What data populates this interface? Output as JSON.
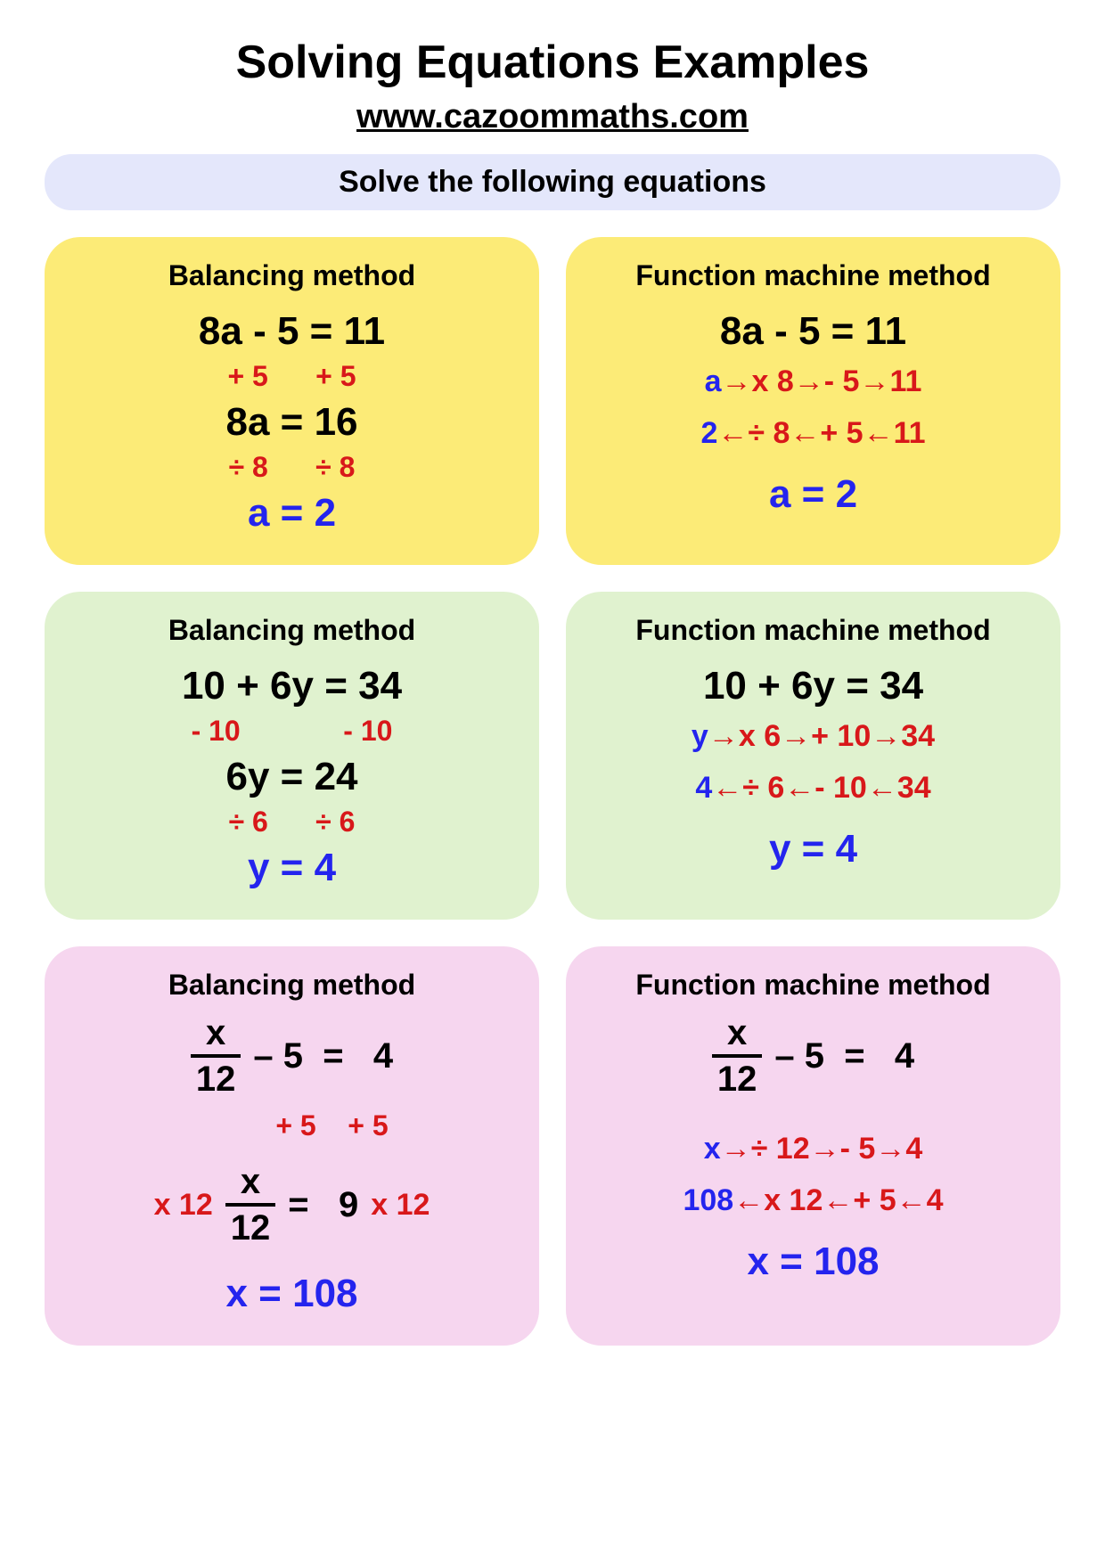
{
  "title": "Solving Equations Examples",
  "url": "www.cazoommaths.com",
  "banner": {
    "text": "Solve the following equations",
    "bg": "#e4e7fb"
  },
  "colors": {
    "red": "#d8181a",
    "blue": "#2424ee",
    "black": "#000000",
    "row_bg": [
      "#fceb77",
      "#e0f2cf",
      "#f6d6ef"
    ]
  },
  "rows": [
    {
      "bg": "#fceb77",
      "left": {
        "title": "Balancing method",
        "lines": [
          {
            "text": "8a - 5 = 11",
            "cls": "eq-black"
          },
          {
            "text": "+ 5      + 5",
            "cls": "eq-red",
            "color": "#d8181a"
          },
          {
            "text": "8a = 16",
            "cls": "eq-black"
          },
          {
            "text": "÷ 8      ÷ 8",
            "cls": "eq-red",
            "color": "#d8181a"
          },
          {
            "text": "a = 2",
            "cls": "eq-blue",
            "color": "#2424ee"
          }
        ]
      },
      "right": {
        "title": "Function machine method",
        "equation": "8a - 5 = 11",
        "fm_forward": [
          {
            "t": "a ",
            "c": "#2424ee"
          },
          {
            "t": "→",
            "c": "#d8181a"
          },
          {
            "t": "x 8 ",
            "c": "#d8181a"
          },
          {
            "t": "→",
            "c": "#d8181a"
          },
          {
            "t": " - 5  ",
            "c": "#d8181a"
          },
          {
            "t": "→",
            "c": "#d8181a"
          },
          {
            "t": " 11",
            "c": "#d8181a"
          }
        ],
        "fm_back": [
          {
            "t": "2 ",
            "c": "#2424ee"
          },
          {
            "t": "←",
            "c": "#d8181a"
          },
          {
            "t": " ÷ 8 ",
            "c": "#d8181a"
          },
          {
            "t": "←",
            "c": "#d8181a"
          },
          {
            "t": " + 5 ",
            "c": "#d8181a"
          },
          {
            "t": "←",
            "c": "#d8181a"
          },
          {
            "t": " 11",
            "c": "#d8181a"
          }
        ],
        "answer": "a = 2"
      }
    },
    {
      "bg": "#e0f2cf",
      "left": {
        "title": "Balancing method",
        "lines": [
          {
            "text": "10 + 6y = 34",
            "cls": "eq-black"
          },
          {
            "text": "- 10             - 10",
            "cls": "eq-red",
            "color": "#d8181a"
          },
          {
            "text": "6y = 24",
            "cls": "eq-black"
          },
          {
            "text": "÷ 6      ÷ 6",
            "cls": "eq-red",
            "color": "#d8181a"
          },
          {
            "text": "y = 4",
            "cls": "eq-blue",
            "color": "#2424ee"
          }
        ]
      },
      "right": {
        "title": "Function machine method",
        "equation": "10 + 6y = 34",
        "fm_forward": [
          {
            "t": "y ",
            "c": "#2424ee"
          },
          {
            "t": "→",
            "c": "#d8181a"
          },
          {
            "t": "x 6 ",
            "c": "#d8181a"
          },
          {
            "t": "→",
            "c": "#d8181a"
          },
          {
            "t": " + 10  ",
            "c": "#d8181a"
          },
          {
            "t": "→",
            "c": "#d8181a"
          },
          {
            "t": " 34",
            "c": "#d8181a"
          }
        ],
        "fm_back": [
          {
            "t": "4 ",
            "c": "#2424ee"
          },
          {
            "t": "←",
            "c": "#d8181a"
          },
          {
            "t": " ÷ 6 ",
            "c": "#d8181a"
          },
          {
            "t": "←",
            "c": "#d8181a"
          },
          {
            "t": " - 10 ",
            "c": "#d8181a"
          },
          {
            "t": "←",
            "c": "#d8181a"
          },
          {
            "t": " 34",
            "c": "#d8181a"
          }
        ],
        "answer": "y = 4"
      }
    },
    {
      "bg": "#f6d6ef",
      "left": {
        "title": "Balancing method",
        "frac1": {
          "num": "x",
          "den": "12",
          "after": "– 5  =   4"
        },
        "step1": "+ 5    + 5",
        "frac2": {
          "pre": "x 12",
          "num": "x",
          "den": "12",
          "mid": "=   9",
          "post": "x 12"
        },
        "answer": "x = 108"
      },
      "right": {
        "title": "Function machine method",
        "frac1": {
          "num": "x",
          "den": "12",
          "after": "– 5  =   4"
        },
        "fm_forward": [
          {
            "t": "x ",
            "c": "#2424ee"
          },
          {
            "t": "→",
            "c": "#d8181a"
          },
          {
            "t": " ÷ 12 ",
            "c": "#d8181a"
          },
          {
            "t": "→",
            "c": "#d8181a"
          },
          {
            "t": " - 5  ",
            "c": "#d8181a"
          },
          {
            "t": "→",
            "c": "#d8181a"
          },
          {
            "t": " 4",
            "c": "#d8181a"
          }
        ],
        "fm_back": [
          {
            "t": "108 ",
            "c": "#2424ee"
          },
          {
            "t": "←",
            "c": "#d8181a"
          },
          {
            "t": " x 12 ",
            "c": "#d8181a"
          },
          {
            "t": "←",
            "c": "#d8181a"
          },
          {
            "t": " + 5 ",
            "c": "#d8181a"
          },
          {
            "t": "←",
            "c": "#d8181a"
          },
          {
            "t": " 4",
            "c": "#d8181a"
          }
        ],
        "answer": "x = 108"
      }
    }
  ]
}
